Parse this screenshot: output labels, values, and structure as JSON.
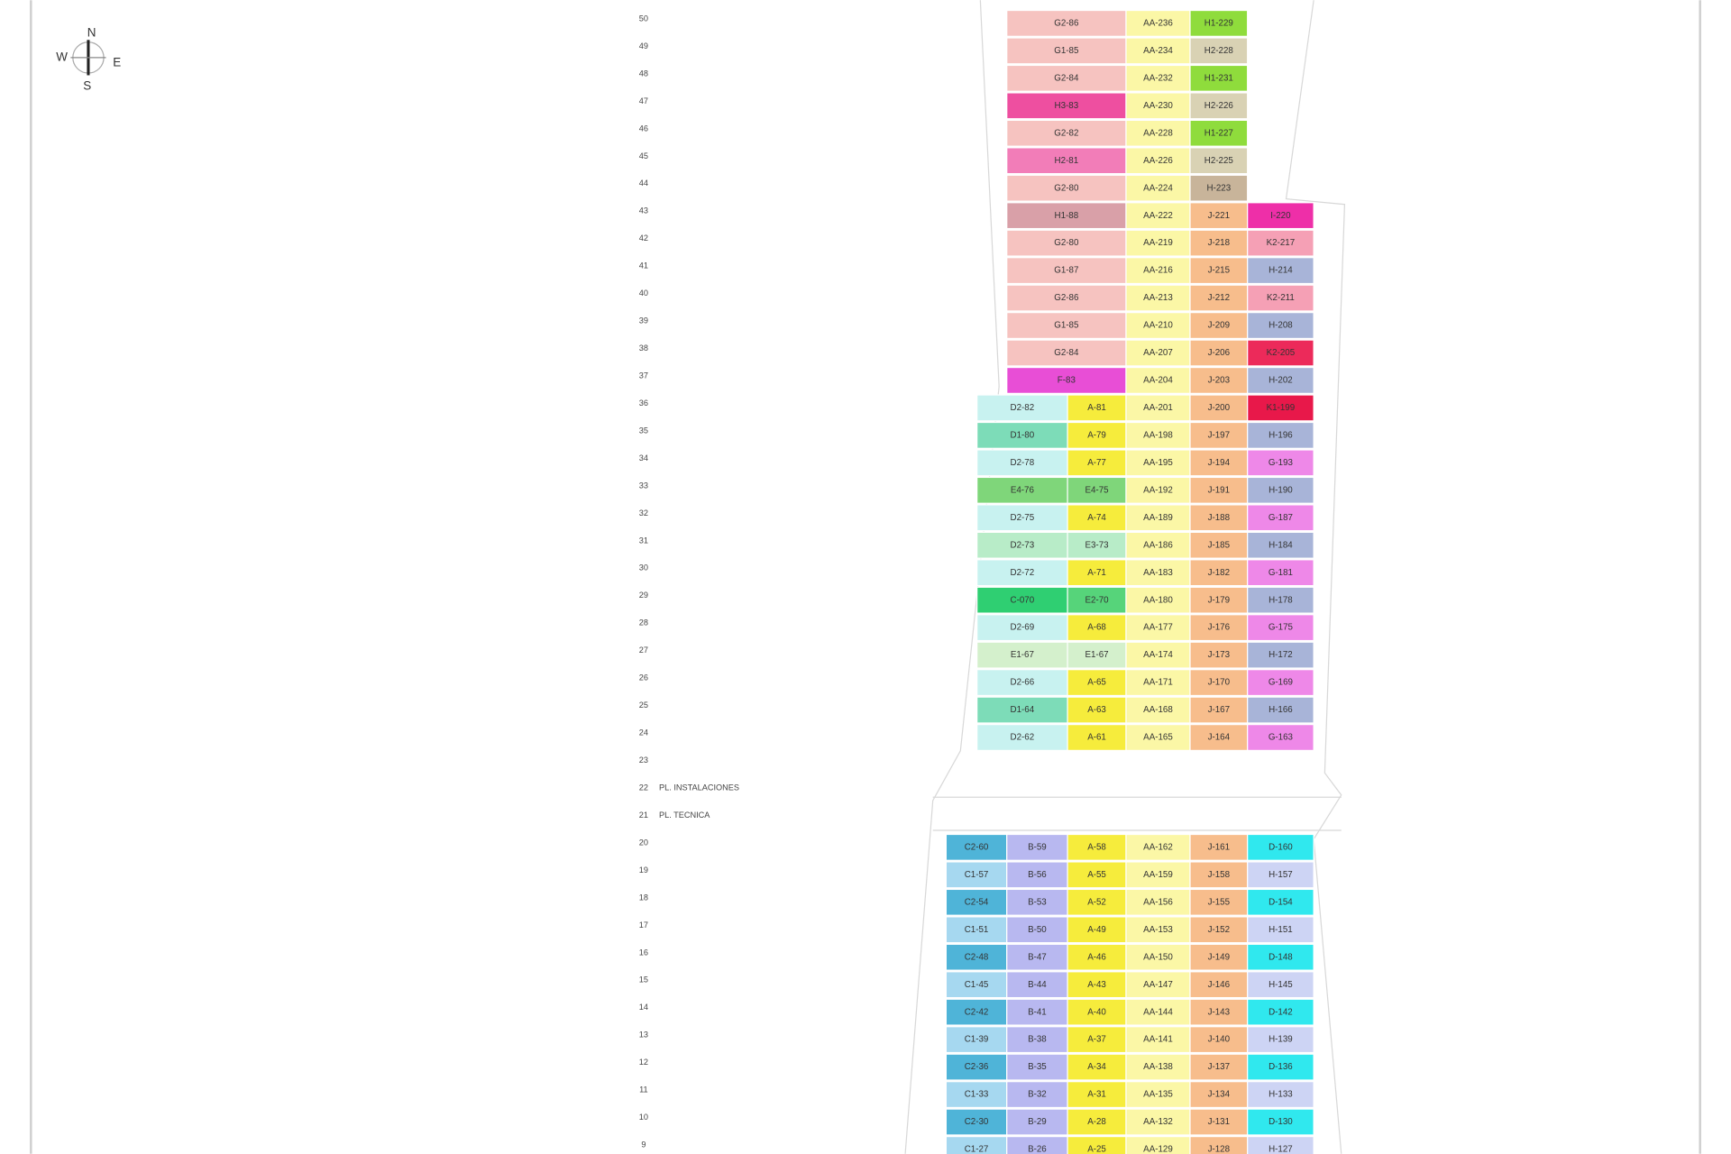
{
  "compass": {
    "n": "N",
    "w": "W",
    "e": "E",
    "s": "S"
  },
  "rows": [
    {
      "floor": "50",
      "cells": [
        [
          "G2-86",
          "#f6c3c0"
        ],
        [
          "AA-236",
          "#fbf7a6"
        ],
        [
          "H1-229",
          "#8fdc3c"
        ]
      ]
    },
    {
      "floor": "49",
      "cells": [
        [
          "G1-85",
          "#f6c3c0"
        ],
        [
          "AA-234",
          "#fbf7a6"
        ],
        [
          "H2-228",
          "#d9d2b4"
        ]
      ]
    },
    {
      "floor": "48",
      "cells": [
        [
          "G2-84",
          "#f6c3c0"
        ],
        [
          "AA-232",
          "#fbf7a6"
        ],
        [
          "H1-231",
          "#8fdc3c"
        ]
      ]
    },
    {
      "floor": "47",
      "cells": [
        [
          "H3-83",
          "#ee4fa0"
        ],
        [
          "AA-230",
          "#fbf7a6"
        ],
        [
          "H2-226",
          "#d9d2b4"
        ]
      ]
    },
    {
      "floor": "46",
      "cells": [
        [
          "G2-82",
          "#f6c3c0"
        ],
        [
          "AA-228",
          "#fbf7a6"
        ],
        [
          "H1-227",
          "#8fdc3c"
        ]
      ]
    },
    {
      "floor": "45",
      "cells": [
        [
          "H2-81",
          "#f27db8"
        ],
        [
          "AA-226",
          "#fbf7a6"
        ],
        [
          "H2-225",
          "#d9d2b4"
        ]
      ]
    },
    {
      "floor": "44",
      "cells": [
        [
          "G2-80",
          "#f6c3c0"
        ],
        [
          "AA-224",
          "#fbf7a6"
        ],
        [
          "H-223",
          "#c8b49a"
        ]
      ]
    },
    {
      "floor": "43",
      "cells": [
        [
          "H1-88",
          "#d9a0a8"
        ],
        [
          "AA-222",
          "#fbf7a6"
        ],
        [
          "J-221",
          "#f7bd8c"
        ],
        [
          "I-220",
          "#ee2fa8"
        ]
      ]
    },
    {
      "floor": "42",
      "cells": [
        [
          "G2-80",
          "#f6c3c0"
        ],
        [
          "AA-219",
          "#fbf7a6"
        ],
        [
          "J-218",
          "#f7bd8c"
        ],
        [
          "K2-217",
          "#f5a0b5"
        ]
      ]
    },
    {
      "floor": "41",
      "cells": [
        [
          "G1-87",
          "#f6c3c0"
        ],
        [
          "AA-216",
          "#fbf7a6"
        ],
        [
          "J-215",
          "#f7bd8c"
        ],
        [
          "H-214",
          "#a8b4d8"
        ]
      ]
    },
    {
      "floor": "40",
      "cells": [
        [
          "G2-86",
          "#f6c3c0"
        ],
        [
          "AA-213",
          "#fbf7a6"
        ],
        [
          "J-212",
          "#f7bd8c"
        ],
        [
          "K2-211",
          "#f5a0b5"
        ]
      ]
    },
    {
      "floor": "39",
      "cells": [
        [
          "G1-85",
          "#f6c3c0"
        ],
        [
          "AA-210",
          "#fbf7a6"
        ],
        [
          "J-209",
          "#f7bd8c"
        ],
        [
          "H-208",
          "#a8b4d8"
        ]
      ]
    },
    {
      "floor": "38",
      "cells": [
        [
          "G2-84",
          "#f6c3c0"
        ],
        [
          "AA-207",
          "#fbf7a6"
        ],
        [
          "J-206",
          "#f7bd8c"
        ],
        [
          "K2-205",
          "#ec2a5a"
        ]
      ]
    },
    {
      "floor": "37",
      "cells": [
        [
          "F-83",
          "#e84ed6"
        ],
        [
          "AA-204",
          "#fbf7a6"
        ],
        [
          "J-203",
          "#f7bd8c"
        ],
        [
          "H-202",
          "#a8b4d8"
        ]
      ]
    },
    {
      "floor": "36",
      "cells": [
        [
          "D2-82",
          "#c8f2f0"
        ],
        [
          "A-81",
          "#f6ec3c"
        ],
        [
          "AA-201",
          "#fbf7a6"
        ],
        [
          "J-200",
          "#f7bd8c"
        ],
        [
          "K1-199",
          "#e8184a"
        ]
      ]
    },
    {
      "floor": "35",
      "cells": [
        [
          "D1-80",
          "#7ddcb8"
        ],
        [
          "A-79",
          "#f6ec3c"
        ],
        [
          "AA-198",
          "#fbf7a6"
        ],
        [
          "J-197",
          "#f7bd8c"
        ],
        [
          "H-196",
          "#a8b4d8"
        ]
      ]
    },
    {
      "floor": "34",
      "cells": [
        [
          "D2-78",
          "#c8f2f0"
        ],
        [
          "A-77",
          "#f6ec3c"
        ],
        [
          "AA-195",
          "#fbf7a6"
        ],
        [
          "J-194",
          "#f7bd8c"
        ],
        [
          "G-193",
          "#ee88e8"
        ]
      ]
    },
    {
      "floor": "33",
      "cells": [
        [
          "E4-76",
          "#7fd67a"
        ],
        [
          "E4-75",
          "#7fd67a"
        ],
        [
          "AA-192",
          "#fbf7a6"
        ],
        [
          "J-191",
          "#f7bd8c"
        ],
        [
          "H-190",
          "#a8b4d8"
        ]
      ]
    },
    {
      "floor": "32",
      "cells": [
        [
          "D2-75",
          "#c8f2f0"
        ],
        [
          "A-74",
          "#f6ec3c"
        ],
        [
          "AA-189",
          "#fbf7a6"
        ],
        [
          "J-188",
          "#f7bd8c"
        ],
        [
          "G-187",
          "#ee88e8"
        ]
      ]
    },
    {
      "floor": "31",
      "cells": [
        [
          "D2-73",
          "#b8ecc8"
        ],
        [
          "E3-73",
          "#b8ecc8"
        ],
        [
          "AA-186",
          "#fbf7a6"
        ],
        [
          "J-185",
          "#f7bd8c"
        ],
        [
          "H-184",
          "#a8b4d8"
        ]
      ]
    },
    {
      "floor": "30",
      "cells": [
        [
          "D2-72",
          "#c8f2f0"
        ],
        [
          "A-71",
          "#f6ec3c"
        ],
        [
          "AA-183",
          "#fbf7a6"
        ],
        [
          "J-182",
          "#f7bd8c"
        ],
        [
          "G-181",
          "#ee88e8"
        ]
      ]
    },
    {
      "floor": "29",
      "cells": [
        [
          "C-070",
          "#2fcf72"
        ],
        [
          "E2-70",
          "#56d47a"
        ],
        [
          "AA-180",
          "#fbf7a6"
        ],
        [
          "J-179",
          "#f7bd8c"
        ],
        [
          "H-178",
          "#a8b4d8"
        ]
      ]
    },
    {
      "floor": "28",
      "cells": [
        [
          "D2-69",
          "#c8f2f0"
        ],
        [
          "A-68",
          "#f6ec3c"
        ],
        [
          "AA-177",
          "#fbf7a6"
        ],
        [
          "J-176",
          "#f7bd8c"
        ],
        [
          "G-175",
          "#ee88e8"
        ]
      ]
    },
    {
      "floor": "27",
      "cells": [
        [
          "E1-67",
          "#d4f0cc"
        ],
        [
          "E1-67",
          "#d4f0cc"
        ],
        [
          "AA-174",
          "#fbf7a6"
        ],
        [
          "J-173",
          "#f7bd8c"
        ],
        [
          "H-172",
          "#a8b4d8"
        ]
      ]
    },
    {
      "floor": "26",
      "cells": [
        [
          "D2-66",
          "#c8f2f0"
        ],
        [
          "A-65",
          "#f6ec3c"
        ],
        [
          "AA-171",
          "#fbf7a6"
        ],
        [
          "J-170",
          "#f7bd8c"
        ],
        [
          "G-169",
          "#ee88e8"
        ]
      ]
    },
    {
      "floor": "25",
      "cells": [
        [
          "D1-64",
          "#7ddcb8"
        ],
        [
          "A-63",
          "#f6ec3c"
        ],
        [
          "AA-168",
          "#fbf7a6"
        ],
        [
          "J-167",
          "#f7bd8c"
        ],
        [
          "H-166",
          "#a8b4d8"
        ]
      ]
    },
    {
      "floor": "24",
      "cells": [
        [
          "D2-62",
          "#c8f2f0"
        ],
        [
          "A-61",
          "#f6ec3c"
        ],
        [
          "AA-165",
          "#fbf7a6"
        ],
        [
          "J-164",
          "#f7bd8c"
        ],
        [
          "G-163",
          "#ee88e8"
        ]
      ]
    },
    {
      "floor": "23",
      "cells": []
    },
    {
      "floor": "22",
      "name": "PL. INSTALACIONES",
      "cells": []
    },
    {
      "floor": "21",
      "name": "PL. TECNICA",
      "cells": []
    },
    {
      "floor": "20",
      "cells": [
        [
          "C2-60",
          "#4fb4d8"
        ],
        [
          "B-59",
          "#b8b8f0"
        ],
        [
          "A-58",
          "#f6ec3c"
        ],
        [
          "AA-162",
          "#fbf7a6"
        ],
        [
          "J-161",
          "#f7bd8c"
        ],
        [
          "D-160",
          "#30e8ee"
        ]
      ]
    },
    {
      "floor": "19",
      "cells": [
        [
          "C1-57",
          "#a6d8f0"
        ],
        [
          "B-56",
          "#b8b8f0"
        ],
        [
          "A-55",
          "#f6ec3c"
        ],
        [
          "AA-159",
          "#fbf7a6"
        ],
        [
          "J-158",
          "#f7bd8c"
        ],
        [
          "H-157",
          "#cdd4f4"
        ]
      ]
    },
    {
      "floor": "18",
      "cells": [
        [
          "C2-54",
          "#4fb4d8"
        ],
        [
          "B-53",
          "#b8b8f0"
        ],
        [
          "A-52",
          "#f6ec3c"
        ],
        [
          "AA-156",
          "#fbf7a6"
        ],
        [
          "J-155",
          "#f7bd8c"
        ],
        [
          "D-154",
          "#30e8ee"
        ]
      ]
    },
    {
      "floor": "17",
      "cells": [
        [
          "C1-51",
          "#a6d8f0"
        ],
        [
          "B-50",
          "#b8b8f0"
        ],
        [
          "A-49",
          "#f6ec3c"
        ],
        [
          "AA-153",
          "#fbf7a6"
        ],
        [
          "J-152",
          "#f7bd8c"
        ],
        [
          "H-151",
          "#cdd4f4"
        ]
      ]
    },
    {
      "floor": "16",
      "cells": [
        [
          "C2-48",
          "#4fb4d8"
        ],
        [
          "B-47",
          "#b8b8f0"
        ],
        [
          "A-46",
          "#f6ec3c"
        ],
        [
          "AA-150",
          "#fbf7a6"
        ],
        [
          "J-149",
          "#f7bd8c"
        ],
        [
          "D-148",
          "#30e8ee"
        ]
      ]
    },
    {
      "floor": "15",
      "cells": [
        [
          "C1-45",
          "#a6d8f0"
        ],
        [
          "B-44",
          "#b8b8f0"
        ],
        [
          "A-43",
          "#f6ec3c"
        ],
        [
          "AA-147",
          "#fbf7a6"
        ],
        [
          "J-146",
          "#f7bd8c"
        ],
        [
          "H-145",
          "#cdd4f4"
        ]
      ]
    },
    {
      "floor": "14",
      "cells": [
        [
          "C2-42",
          "#4fb4d8"
        ],
        [
          "B-41",
          "#b8b8f0"
        ],
        [
          "A-40",
          "#f6ec3c"
        ],
        [
          "AA-144",
          "#fbf7a6"
        ],
        [
          "J-143",
          "#f7bd8c"
        ],
        [
          "D-142",
          "#30e8ee"
        ]
      ]
    },
    {
      "floor": "13",
      "cells": [
        [
          "C1-39",
          "#a6d8f0"
        ],
        [
          "B-38",
          "#b8b8f0"
        ],
        [
          "A-37",
          "#f6ec3c"
        ],
        [
          "AA-141",
          "#fbf7a6"
        ],
        [
          "J-140",
          "#f7bd8c"
        ],
        [
          "H-139",
          "#cdd4f4"
        ]
      ]
    },
    {
      "floor": "12",
      "cells": [
        [
          "C2-36",
          "#4fb4d8"
        ],
        [
          "B-35",
          "#b8b8f0"
        ],
        [
          "A-34",
          "#f6ec3c"
        ],
        [
          "AA-138",
          "#fbf7a6"
        ],
        [
          "J-137",
          "#f7bd8c"
        ],
        [
          "D-136",
          "#30e8ee"
        ]
      ]
    },
    {
      "floor": "11",
      "cells": [
        [
          "C1-33",
          "#a6d8f0"
        ],
        [
          "B-32",
          "#b8b8f0"
        ],
        [
          "A-31",
          "#f6ec3c"
        ],
        [
          "AA-135",
          "#fbf7a6"
        ],
        [
          "J-134",
          "#f7bd8c"
        ],
        [
          "H-133",
          "#cdd4f4"
        ]
      ]
    },
    {
      "floor": "10",
      "cells": [
        [
          "C2-30",
          "#4fb4d8"
        ],
        [
          "B-29",
          "#b8b8f0"
        ],
        [
          "A-28",
          "#f6ec3c"
        ],
        [
          "AA-132",
          "#fbf7a6"
        ],
        [
          "J-131",
          "#f7bd8c"
        ],
        [
          "D-130",
          "#30e8ee"
        ]
      ]
    },
    {
      "floor": "9",
      "cells": [
        [
          "C1-27",
          "#a6d8f0"
        ],
        [
          "B-26",
          "#b8b8f0"
        ],
        [
          "A-25",
          "#f6ec3c"
        ],
        [
          "AA-129",
          "#fbf7a6"
        ],
        [
          "J-128",
          "#f7bd8c"
        ],
        [
          "H-127",
          "#cdd4f4"
        ]
      ]
    }
  ]
}
